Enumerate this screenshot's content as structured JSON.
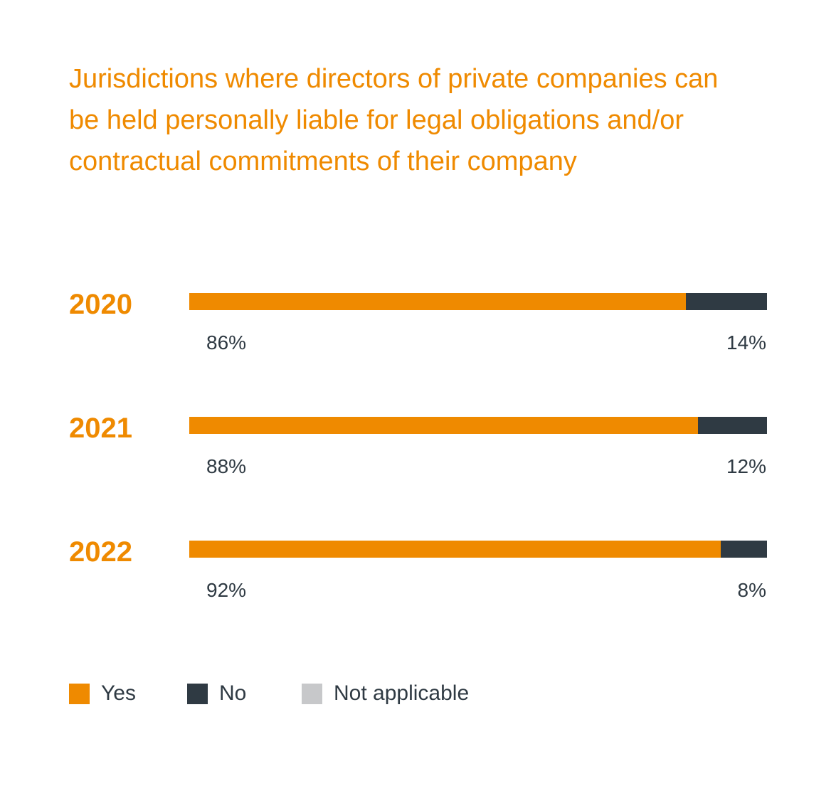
{
  "chart_data": {
    "type": "bar",
    "orientation": "horizontal",
    "stacked": true,
    "title": "Jurisdictions where directors of private companies can be held personally liable for legal obligations and/or contractual commitments of their company",
    "categories": [
      "2020",
      "2021",
      "2022"
    ],
    "series": [
      {
        "name": "Yes",
        "values": [
          86,
          88,
          92
        ],
        "labels": [
          "86%",
          "88%",
          "92%"
        ],
        "color": "#ef8a00"
      },
      {
        "name": "No",
        "values": [
          14,
          12,
          8
        ],
        "labels": [
          "14%",
          "12%",
          "8%"
        ],
        "color": "#2f3a43"
      },
      {
        "name": "Not applicable",
        "values": [
          0,
          0,
          0
        ],
        "color": "#c7c8ca"
      }
    ],
    "xlim": [
      0,
      100
    ],
    "grid": false,
    "legend": "bottom-left"
  }
}
